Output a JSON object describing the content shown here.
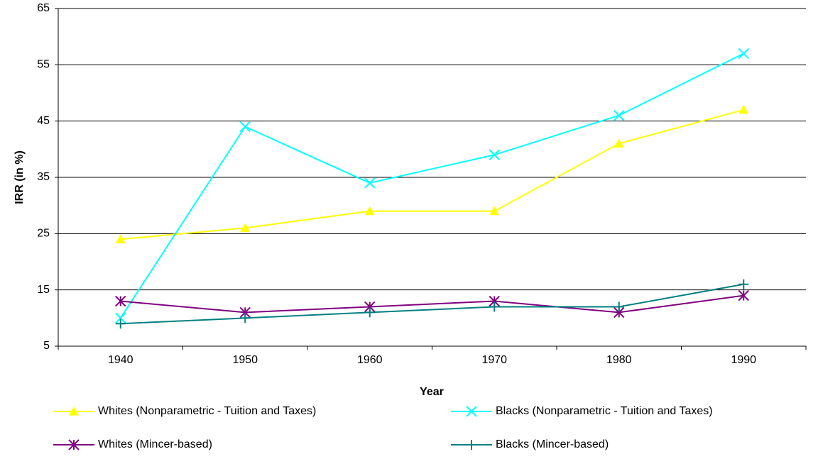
{
  "chart_data": {
    "type": "line",
    "x_label": "Year",
    "y_label": "IRR (in %)",
    "categories": [
      "1940",
      "1950",
      "1960",
      "1970",
      "1980",
      "1990"
    ],
    "series": [
      {
        "name": "Whites (Nonparametric - Tuition and Taxes)",
        "color": "#ffff00",
        "marker": "triangle",
        "values": [
          24,
          26,
          29,
          29,
          41,
          47
        ]
      },
      {
        "name": "Blacks (Nonparametric - Tuition and Taxes)",
        "color": "#00ffff",
        "marker": "x",
        "values": [
          10,
          44,
          34,
          39,
          46,
          57
        ]
      },
      {
        "name": "Whites (Mincer-based)",
        "color": "#800080",
        "marker": "asterisk",
        "values": [
          13,
          11,
          12,
          13,
          11,
          14
        ]
      },
      {
        "name": "Blacks (Mincer-based)",
        "color": "#008080",
        "marker": "plus",
        "values": [
          9,
          10,
          11,
          12,
          12,
          16
        ]
      }
    ],
    "ylim": [
      5,
      65
    ],
    "yticks": [
      5,
      15,
      25,
      35,
      45,
      55,
      65
    ],
    "grid": true,
    "legend": "bottom"
  }
}
